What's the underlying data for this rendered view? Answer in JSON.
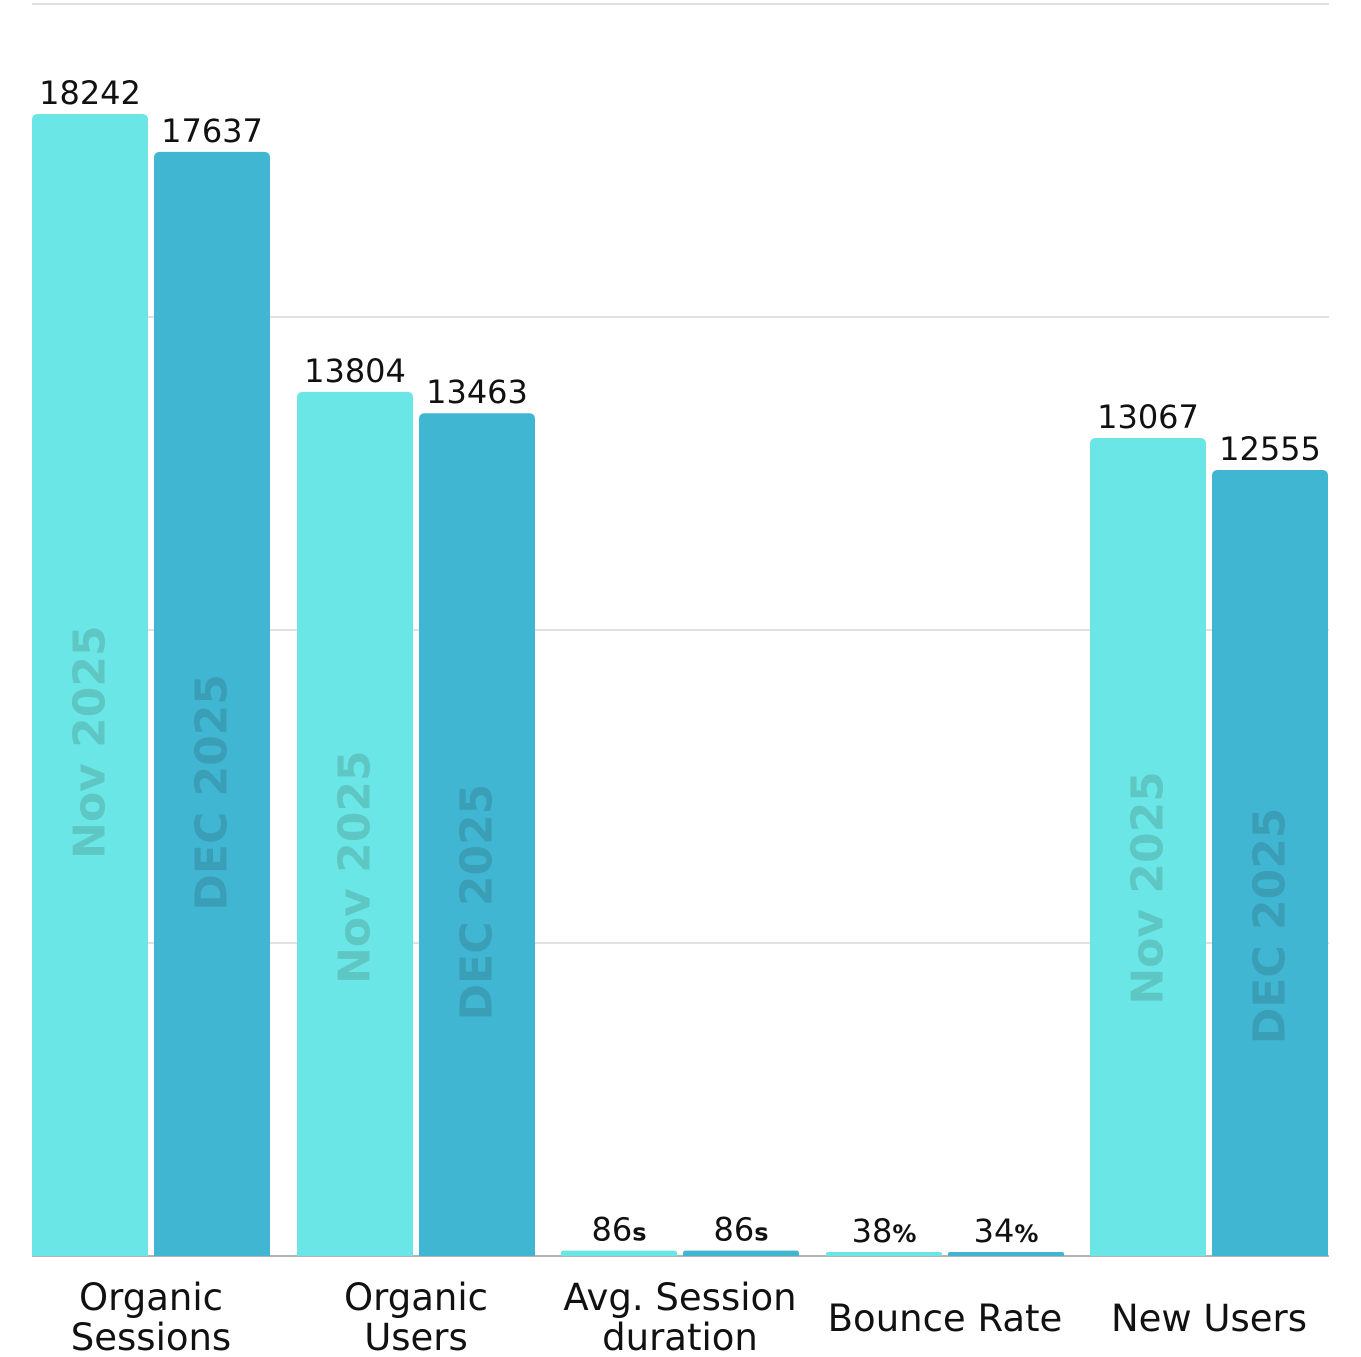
{
  "chart_data": {
    "type": "bar",
    "categories": [
      [
        "Organic",
        "Sessions"
      ],
      [
        "Organic",
        "Users"
      ],
      [
        "Avg. Session",
        "duration"
      ],
      [
        "Bounce Rate"
      ],
      [
        "New Users"
      ]
    ],
    "series": [
      {
        "name": "Nov 2025",
        "values": [
          18242,
          13804,
          86,
          38,
          13067
        ],
        "value_labels": [
          "18242",
          "13804",
          "86",
          "38",
          "13067"
        ],
        "value_units": [
          "",
          "",
          "s",
          "%",
          ""
        ],
        "color": "#6ae6e6",
        "label_color": "#5ec7c3"
      },
      {
        "name": "DEC 2025",
        "values": [
          17637,
          13463,
          86,
          34,
          12555
        ],
        "value_labels": [
          "17637",
          "13463",
          "86",
          "34",
          "12555"
        ],
        "value_units": [
          "",
          "",
          "s",
          "%",
          ""
        ],
        "color": "#41b6d3",
        "label_color": "#3a9eb6"
      }
    ],
    "ylim": [
      0,
      20000
    ],
    "grid": true,
    "legend": "none"
  }
}
